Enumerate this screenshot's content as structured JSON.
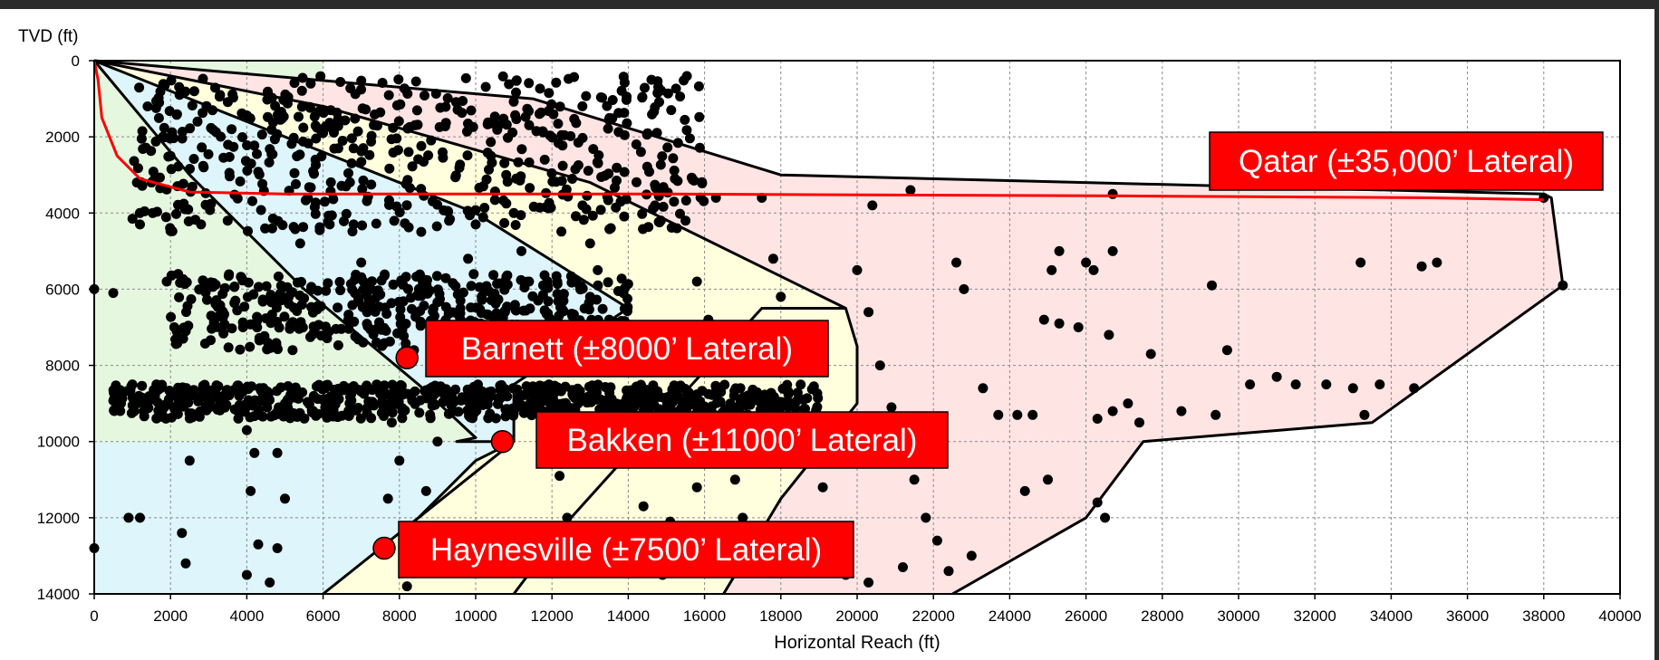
{
  "chart_data": {
    "type": "scatter",
    "ylabel": "TVD (ft)",
    "xlabel": "Horizontal Reach (ft)",
    "xlim": [
      0,
      40000
    ],
    "ylim": [
      0,
      14000
    ],
    "y_inverted": true,
    "grid": true,
    "x_ticks": [
      0,
      2000,
      4000,
      6000,
      8000,
      10000,
      12000,
      14000,
      16000,
      18000,
      20000,
      22000,
      24000,
      26000,
      28000,
      30000,
      32000,
      34000,
      36000,
      38000,
      40000
    ],
    "y_ticks": [
      0,
      2000,
      4000,
      6000,
      8000,
      10000,
      12000,
      14000
    ],
    "zones": [
      {
        "color": "#e6f7e0",
        "points": [
          [
            0,
            0
          ],
          [
            0,
            14000
          ],
          [
            6000,
            14000
          ],
          [
            6000,
            0
          ]
        ]
      },
      {
        "color": "#ffe4e4",
        "points": [
          [
            0,
            0
          ],
          [
            11500,
            1000
          ],
          [
            18000,
            3000
          ],
          [
            38200,
            3600
          ],
          [
            38500,
            5900
          ],
          [
            33500,
            9500
          ],
          [
            27500,
            10000
          ],
          [
            26000,
            12000
          ],
          [
            22500,
            14000
          ],
          [
            6000,
            14000
          ]
        ]
      },
      {
        "color": "#ffffde",
        "points": [
          [
            0,
            0
          ],
          [
            6000,
            1200
          ],
          [
            13000,
            3200
          ],
          [
            19700,
            6500
          ],
          [
            20000,
            7500
          ],
          [
            20000,
            9000
          ],
          [
            19200,
            10000
          ],
          [
            18000,
            11500
          ],
          [
            16500,
            14000
          ],
          [
            6000,
            14000
          ]
        ]
      },
      {
        "color": "#ddf5fb",
        "points": [
          [
            0,
            0
          ],
          [
            5000,
            2000
          ],
          [
            10000,
            4000
          ],
          [
            14000,
            6500
          ],
          [
            11000,
            8500
          ],
          [
            11000,
            10000
          ],
          [
            10000,
            10500
          ],
          [
            8500,
            12000
          ],
          [
            6000,
            14000
          ],
          [
            0,
            14000
          ]
        ]
      },
      {
        "color": "#e6f7e0",
        "points": [
          [
            0,
            0
          ],
          [
            2500,
            3000
          ],
          [
            5500,
            6000
          ],
          [
            8500,
            8500
          ],
          [
            10000,
            9900
          ],
          [
            9500,
            10000
          ],
          [
            0,
            10000
          ]
        ]
      }
    ],
    "boundaries": [
      {
        "name": "",
        "points": [
          [
            0,
            0
          ],
          [
            11500,
            1000
          ],
          [
            18000,
            3000
          ],
          [
            38000,
            3500
          ],
          [
            38200,
            3600
          ],
          [
            38500,
            5900
          ],
          [
            33500,
            9500
          ],
          [
            27500,
            10000
          ],
          [
            26000,
            12000
          ],
          [
            22500,
            14000
          ]
        ]
      },
      {
        "name": "",
        "points": [
          [
            0,
            0
          ],
          [
            6000,
            1200
          ],
          [
            13000,
            3200
          ],
          [
            19700,
            6500
          ],
          [
            20000,
            7500
          ],
          [
            20000,
            9000
          ],
          [
            19200,
            10000
          ],
          [
            18000,
            11500
          ],
          [
            16500,
            14000
          ]
        ]
      },
      {
        "name": "",
        "points": [
          [
            0,
            0
          ],
          [
            5000,
            2000
          ],
          [
            10000,
            4000
          ],
          [
            14000,
            6500
          ],
          [
            11000,
            8500
          ],
          [
            11000,
            10000
          ],
          [
            10000,
            10500
          ],
          [
            8500,
            12000
          ],
          [
            6000,
            14000
          ]
        ]
      },
      {
        "name": "",
        "points": [
          [
            0,
            0
          ],
          [
            2500,
            3000
          ],
          [
            5500,
            6000
          ],
          [
            8500,
            8500
          ],
          [
            10000,
            9900
          ],
          [
            9500,
            10000
          ],
          [
            11000,
            10000
          ],
          [
            8500,
            12000
          ]
        ]
      },
      {
        "name": "",
        "points": [
          [
            11000,
            14000
          ],
          [
            12500,
            12000
          ],
          [
            14300,
            10000
          ],
          [
            17500,
            6500
          ],
          [
            19700,
            6500
          ]
        ]
      }
    ],
    "well_path": {
      "name": "",
      "color": "#ff0000",
      "points": [
        [
          0,
          0
        ],
        [
          100,
          500
        ],
        [
          200,
          1500
        ],
        [
          600,
          2500
        ],
        [
          1200,
          3100
        ],
        [
          2500,
          3450
        ],
        [
          5000,
          3500
        ],
        [
          15000,
          3500
        ],
        [
          27000,
          3550
        ],
        [
          35000,
          3600
        ],
        [
          38000,
          3650
        ]
      ]
    },
    "scatter_points": [
      [
        0,
        12800
      ],
      [
        0,
        6000
      ],
      [
        500,
        6100
      ],
      [
        900,
        12000
      ],
      [
        1200,
        12000
      ],
      [
        700,
        9000
      ],
      [
        1000,
        8500
      ],
      [
        1300,
        9000
      ],
      [
        1200,
        4300
      ],
      [
        1500,
        3200
      ],
      [
        1400,
        1200
      ],
      [
        1700,
        1100
      ],
      [
        1800,
        2000
      ],
      [
        2000,
        2500
      ],
      [
        1900,
        5800
      ],
      [
        2200,
        5600
      ],
      [
        2100,
        7000
      ],
      [
        2400,
        7100
      ],
      [
        2300,
        8800
      ],
      [
        2600,
        9300
      ],
      [
        2500,
        10500
      ],
      [
        2300,
        12400
      ],
      [
        2400,
        13200
      ],
      [
        2800,
        4300
      ],
      [
        3000,
        3800
      ],
      [
        3100,
        1300
      ],
      [
        3300,
        900
      ],
      [
        3600,
        1800
      ],
      [
        3500,
        4200
      ],
      [
        3700,
        6300
      ],
      [
        3900,
        7000
      ],
      [
        3800,
        8800
      ],
      [
        4000,
        9700
      ],
      [
        4200,
        10300
      ],
      [
        4100,
        11300
      ],
      [
        4300,
        12700
      ],
      [
        4000,
        13500
      ],
      [
        4600,
        13700
      ],
      [
        4800,
        12800
      ],
      [
        5000,
        11500
      ],
      [
        4800,
        10300
      ],
      [
        5000,
        9000
      ],
      [
        5200,
        7600
      ],
      [
        5100,
        6200
      ],
      [
        5400,
        4800
      ],
      [
        5600,
        3600
      ],
      [
        5800,
        2600
      ],
      [
        6000,
        1900
      ],
      [
        6200,
        1300
      ],
      [
        6400,
        2300
      ],
      [
        6600,
        3300
      ],
      [
        6800,
        4300
      ],
      [
        7000,
        5300
      ],
      [
        7200,
        6300
      ],
      [
        7400,
        7400
      ],
      [
        7600,
        8700
      ],
      [
        7800,
        9500
      ],
      [
        8000,
        10500
      ],
      [
        7700,
        11500
      ],
      [
        7500,
        12700
      ],
      [
        8200,
        13800
      ],
      [
        8500,
        12400
      ],
      [
        8700,
        11300
      ],
      [
        9000,
        10000
      ],
      [
        9200,
        8800
      ],
      [
        9400,
        7500
      ],
      [
        9600,
        6300
      ],
      [
        9800,
        5200
      ],
      [
        10000,
        4300
      ],
      [
        10200,
        3300
      ],
      [
        10400,
        2500
      ],
      [
        10600,
        1700
      ],
      [
        10800,
        3000
      ],
      [
        11000,
        4000
      ],
      [
        11200,
        5000
      ],
      [
        11400,
        5800
      ],
      [
        11600,
        7500
      ],
      [
        11800,
        8800
      ],
      [
        12000,
        9800
      ],
      [
        12200,
        10900
      ],
      [
        12400,
        12000
      ],
      [
        12600,
        13200
      ],
      [
        12800,
        3800
      ],
      [
        13000,
        4800
      ],
      [
        13200,
        5500
      ],
      [
        13500,
        6800
      ],
      [
        13800,
        8000
      ],
      [
        14000,
        9300
      ],
      [
        14200,
        10500
      ],
      [
        14400,
        11700
      ],
      [
        14600,
        12800
      ],
      [
        14900,
        13500
      ],
      [
        15200,
        3700
      ],
      [
        15500,
        4200
      ],
      [
        15800,
        5800
      ],
      [
        16100,
        6800
      ],
      [
        16300,
        8800
      ],
      [
        16600,
        9800
      ],
      [
        16800,
        11000
      ],
      [
        17000,
        12000
      ],
      [
        17300,
        13000
      ],
      [
        17500,
        3600
      ],
      [
        17800,
        5200
      ],
      [
        18000,
        6200
      ],
      [
        18300,
        7400
      ],
      [
        18600,
        8900
      ],
      [
        18800,
        10300
      ],
      [
        19100,
        11200
      ],
      [
        19400,
        12300
      ],
      [
        19700,
        13500
      ],
      [
        20000,
        5500
      ],
      [
        20300,
        6600
      ],
      [
        20600,
        8000
      ],
      [
        20900,
        9100
      ],
      [
        21200,
        10000
      ],
      [
        21500,
        11000
      ],
      [
        21800,
        12000
      ],
      [
        22100,
        12600
      ],
      [
        22400,
        13400
      ],
      [
        20400,
        3800
      ],
      [
        21400,
        3400
      ],
      [
        22600,
        5300
      ],
      [
        22800,
        6000
      ],
      [
        23300,
        8600
      ],
      [
        23700,
        9300
      ],
      [
        24200,
        9300
      ],
      [
        24600,
        9300
      ],
      [
        24400,
        11300
      ],
      [
        25000,
        11000
      ],
      [
        25300,
        5000
      ],
      [
        25100,
        5500
      ],
      [
        24900,
        6800
      ],
      [
        25300,
        6900
      ],
      [
        25800,
        7000
      ],
      [
        26000,
        5300
      ],
      [
        26200,
        5500
      ],
      [
        26300,
        9400
      ],
      [
        26700,
        9200
      ],
      [
        26600,
        7200
      ],
      [
        26700,
        5000
      ],
      [
        26700,
        3500
      ],
      [
        27100,
        9000
      ],
      [
        27400,
        9500
      ],
      [
        27700,
        7700
      ],
      [
        28500,
        9200
      ],
      [
        29300,
        5900
      ],
      [
        29400,
        9300
      ],
      [
        29700,
        7600
      ],
      [
        30300,
        8500
      ],
      [
        31000,
        8300
      ],
      [
        31500,
        8500
      ],
      [
        32300,
        8500
      ],
      [
        33000,
        8600
      ],
      [
        33200,
        5300
      ],
      [
        33300,
        9300
      ],
      [
        33700,
        8500
      ],
      [
        34600,
        8600
      ],
      [
        34800,
        5400
      ],
      [
        35200,
        5300
      ],
      [
        38000,
        3600
      ],
      [
        38500,
        5900
      ],
      [
        12900,
        3900
      ],
      [
        13800,
        3700
      ],
      [
        14700,
        3800
      ],
      [
        16300,
        3600
      ],
      [
        23000,
        13000
      ],
      [
        26500,
        12000
      ],
      [
        26300,
        11600
      ],
      [
        20300,
        13700
      ],
      [
        21200,
        13300
      ],
      [
        15800,
        11200
      ],
      [
        15100,
        12100
      ]
    ],
    "cluster_bands": [
      {
        "y_range": [
          8500,
          9400
        ],
        "x_range": [
          500,
          19000
        ],
        "count": 700
      },
      {
        "y_range": [
          5600,
          7600
        ],
        "x_range": [
          2000,
          14000
        ],
        "count": 420
      },
      {
        "y_range": [
          400,
          4500
        ],
        "x_range": [
          1000,
          16000
        ],
        "count": 520
      }
    ],
    "highlights": [
      {
        "label": "Barnett (±8000’ Lateral)",
        "x": 8200,
        "y": 7800
      },
      {
        "label": "Bakken (±11000’ Lateral)",
        "x": 10700,
        "y": 10000
      },
      {
        "label": "Haynesville (±7500’ Lateral)",
        "x": 7600,
        "y": 12800
      },
      {
        "label": "Qatar (±35,000’ Lateral)",
        "x": 38000,
        "y": 3650
      }
    ],
    "colors": {
      "point": "#000000",
      "highlight": "#ff0000",
      "label_bg": "#ff0000",
      "label_text": "#ffffff",
      "grid": "#8a8a8a",
      "boundary": "#000000"
    }
  }
}
